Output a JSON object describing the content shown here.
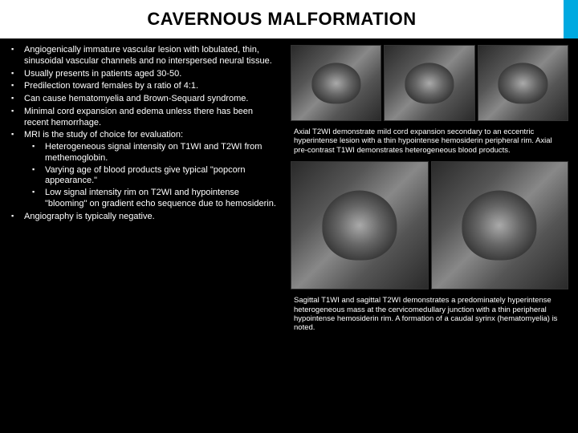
{
  "header": {
    "title": "CAVERNOUS MALFORMATION"
  },
  "bullets": {
    "b0": "Angiogenically immature vascular lesion with lobulated, thin, sinusoidal vascular channels and no interspersed neural tissue.",
    "b1": "Usually presents in patients aged 30-50.",
    "b2": "Predilection toward females by a ratio of 4:1.",
    "b3": "Can cause hematomyelia and Brown-Sequard syndrome.",
    "b4": "Minimal cord expansion and edema unless there has been recent hemorrhage.",
    "b5": "MRI is the study of choice for evaluation:",
    "b5a": "Heterogeneous signal intensity on T1WI and T2WI from methemoglobin.",
    "b5b": "Varying age of blood products give typical \"popcorn appearance.\"",
    "b5c": "Low signal intensity rim on T2WI and hypointense \"blooming\" on gradient echo sequence due to hemosiderin.",
    "b6": "Angiography is typically negative."
  },
  "captions": {
    "top": "Axial T2WI demonstrate mild cord expansion secondary to an eccentric hyperintense lesion with a thin hypointense hemosiderin peripheral rim. Axial pre-contrast T1WI demonstrates heterogeneous blood products.",
    "bottom": "Sagittal T1WI and sagittal T2WI demonstrates a predominately hyperintense heterogeneous mass at the cervicomedullary junction with a thin peripheral hypointense hemosiderin rim. A formation of a caudal syrinx (hematomyelia) is noted."
  }
}
